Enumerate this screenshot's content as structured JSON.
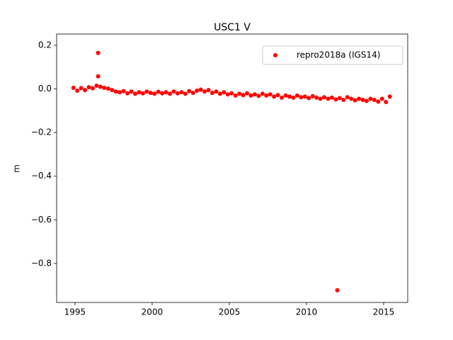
{
  "chart_data": {
    "type": "scatter",
    "title": "USC1 V",
    "y_label": "m",
    "series": [
      {
        "name": "repro2018a (IGS14)",
        "color": "#ff0000",
        "x": [
          1994.9,
          1995.15,
          1995.4,
          1995.65,
          1995.9,
          1996.15,
          1996.4,
          1996.65,
          1996.9,
          1997.15,
          1997.4,
          1997.65,
          1997.9,
          1998.15,
          1998.4,
          1998.65,
          1998.9,
          1999.15,
          1999.4,
          1999.65,
          1999.9,
          2000.15,
          2000.4,
          2000.65,
          2000.9,
          2001.15,
          2001.4,
          2001.65,
          2001.9,
          2002.15,
          2002.4,
          2002.65,
          2002.9,
          2003.15,
          2003.4,
          2003.65,
          2003.9,
          2004.15,
          2004.4,
          2004.65,
          2004.9,
          2005.15,
          2005.4,
          2005.65,
          2005.9,
          2006.15,
          2006.4,
          2006.65,
          2006.9,
          2007.15,
          2007.4,
          2007.65,
          2007.9,
          2008.15,
          2008.4,
          2008.65,
          2008.9,
          2009.15,
          2009.4,
          2009.65,
          2009.9,
          2010.15,
          2010.4,
          2010.65,
          2010.9,
          2011.15,
          2011.4,
          2011.65,
          2011.9,
          2012.15,
          2012.4,
          2012.65,
          2012.9,
          2013.15,
          2013.4,
          2013.65,
          2013.9,
          2014.15,
          2014.4,
          2014.65,
          2014.9,
          2015.15,
          2015.4,
          1996.5,
          1996.5,
          2012.0
        ],
        "values": [
          0.005,
          -0.008,
          0.004,
          -0.005,
          0.008,
          0.003,
          0.015,
          0.01,
          0.005,
          0.002,
          -0.005,
          -0.012,
          -0.015,
          -0.01,
          -0.02,
          -0.012,
          -0.022,
          -0.015,
          -0.02,
          -0.012,
          -0.018,
          -0.022,
          -0.013,
          -0.02,
          -0.015,
          -0.022,
          -0.012,
          -0.02,
          -0.015,
          -0.022,
          -0.01,
          -0.018,
          -0.008,
          -0.003,
          -0.012,
          -0.005,
          -0.018,
          -0.012,
          -0.022,
          -0.015,
          -0.025,
          -0.02,
          -0.03,
          -0.022,
          -0.028,
          -0.02,
          -0.03,
          -0.025,
          -0.032,
          -0.022,
          -0.03,
          -0.025,
          -0.035,
          -0.028,
          -0.04,
          -0.03,
          -0.035,
          -0.04,
          -0.03,
          -0.038,
          -0.035,
          -0.042,
          -0.033,
          -0.04,
          -0.045,
          -0.038,
          -0.045,
          -0.04,
          -0.048,
          -0.042,
          -0.05,
          -0.038,
          -0.045,
          -0.052,
          -0.045,
          -0.05,
          -0.055,
          -0.045,
          -0.05,
          -0.058,
          -0.045,
          -0.06,
          -0.035,
          0.165,
          0.058,
          -0.923
        ]
      }
    ],
    "xlim": [
      1993.81,
      2016.56
    ],
    "xticks": [
      1995,
      2000,
      2005,
      2010,
      2015
    ],
    "ylim": [
      -0.979,
      0.252
    ],
    "yticks": [
      {
        "value": -0.8,
        "label": "−0.8"
      },
      {
        "value": -0.6,
        "label": "−0.6"
      },
      {
        "value": -0.4,
        "label": "−0.4"
      },
      {
        "value": -0.2,
        "label": "−0.2"
      },
      {
        "value": 0,
        "label": "0.0"
      },
      {
        "value": 0.2,
        "label": "0.2"
      }
    ],
    "grid": false,
    "legend": "upper right"
  }
}
